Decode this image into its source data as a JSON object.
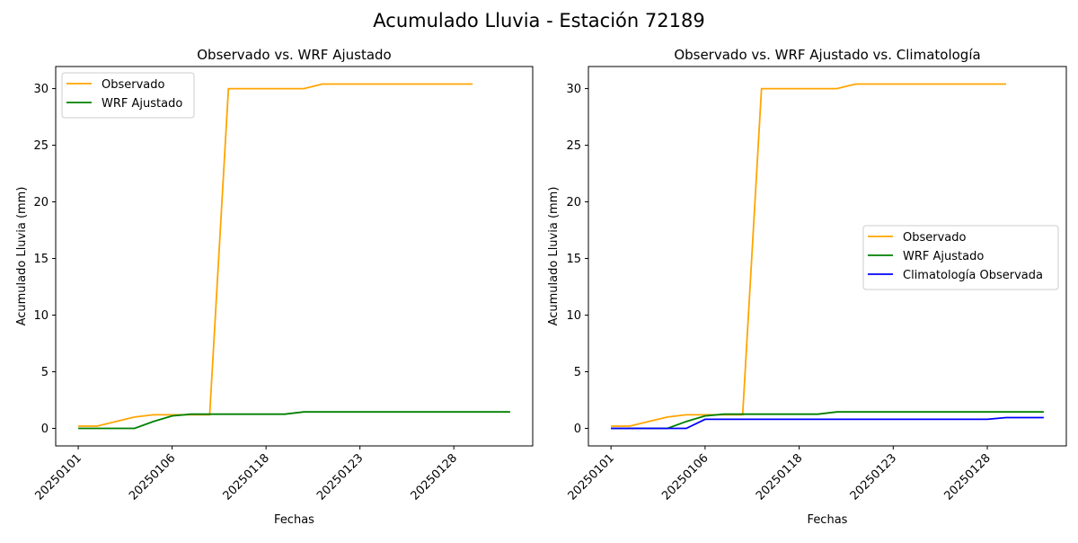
{
  "suptitle": "Acumulado Lluvia - Estación 72189",
  "colors": {
    "Observado": "#FFA500",
    "WRF Ajustado": "#008000",
    "Climatología Observada": "#0000FF"
  },
  "chart_data": [
    {
      "type": "line",
      "title": "Observado vs. WRF Ajustado",
      "xlabel": "Fechas",
      "ylabel": "Acumulado Lluvia (mm)",
      "xticks": [
        {
          "index": 0,
          "label": "20250101"
        },
        {
          "index": 5,
          "label": "20250106"
        },
        {
          "index": 10,
          "label": "20250118"
        },
        {
          "index": 15,
          "label": "20250123"
        },
        {
          "index": 20,
          "label": "20250128"
        }
      ],
      "yticks": [
        0,
        5,
        10,
        15,
        20,
        25,
        30
      ],
      "xlim": [
        -1.2,
        24.2
      ],
      "ylim": [
        -1.55,
        31.95
      ],
      "legend": "top-left",
      "series": [
        {
          "name": "Observado",
          "values": [
            0.2,
            0.2,
            0.6,
            1.0,
            1.2,
            1.2,
            1.2,
            1.2,
            30,
            30,
            30,
            30,
            30,
            30.4,
            30.4,
            30.4,
            30.4,
            30.4,
            30.4,
            30.4,
            30.4,
            30.4
          ]
        },
        {
          "name": "WRF Ajustado",
          "values": [
            0,
            0,
            0,
            0,
            0.6,
            1.1,
            1.25,
            1.25,
            1.25,
            1.25,
            1.25,
            1.25,
            1.45,
            1.45,
            1.45,
            1.45,
            1.45,
            1.45,
            1.45,
            1.45,
            1.45,
            1.45,
            1.45,
            1.45
          ]
        }
      ]
    },
    {
      "type": "line",
      "title": "Observado vs. WRF Ajustado vs. Climatología",
      "xlabel": "Fechas",
      "ylabel": "Acumulado Lluvia (mm)",
      "xticks": [
        {
          "index": 0,
          "label": "20250101"
        },
        {
          "index": 5,
          "label": "20250106"
        },
        {
          "index": 10,
          "label": "20250118"
        },
        {
          "index": 15,
          "label": "20250123"
        },
        {
          "index": 20,
          "label": "20250128"
        }
      ],
      "yticks": [
        0,
        5,
        10,
        15,
        20,
        25,
        30
      ],
      "xlim": [
        -1.2,
        24.2
      ],
      "ylim": [
        -1.55,
        31.95
      ],
      "legend": "center-right",
      "series": [
        {
          "name": "Observado",
          "values": [
            0.2,
            0.2,
            0.6,
            1.0,
            1.2,
            1.2,
            1.2,
            1.2,
            30,
            30,
            30,
            30,
            30,
            30.4,
            30.4,
            30.4,
            30.4,
            30.4,
            30.4,
            30.4,
            30.4,
            30.4
          ]
        },
        {
          "name": "WRF Ajustado",
          "values": [
            0,
            0,
            0,
            0,
            0.6,
            1.1,
            1.25,
            1.25,
            1.25,
            1.25,
            1.25,
            1.25,
            1.45,
            1.45,
            1.45,
            1.45,
            1.45,
            1.45,
            1.45,
            1.45,
            1.45,
            1.45,
            1.45,
            1.45
          ]
        },
        {
          "name": "Climatología Observada",
          "values": [
            0,
            0,
            0,
            0,
            0,
            0.8,
            0.8,
            0.8,
            0.8,
            0.8,
            0.8,
            0.8,
            0.8,
            0.8,
            0.8,
            0.8,
            0.8,
            0.8,
            0.8,
            0.8,
            0.8,
            0.95,
            0.95,
            0.95
          ]
        }
      ]
    }
  ]
}
